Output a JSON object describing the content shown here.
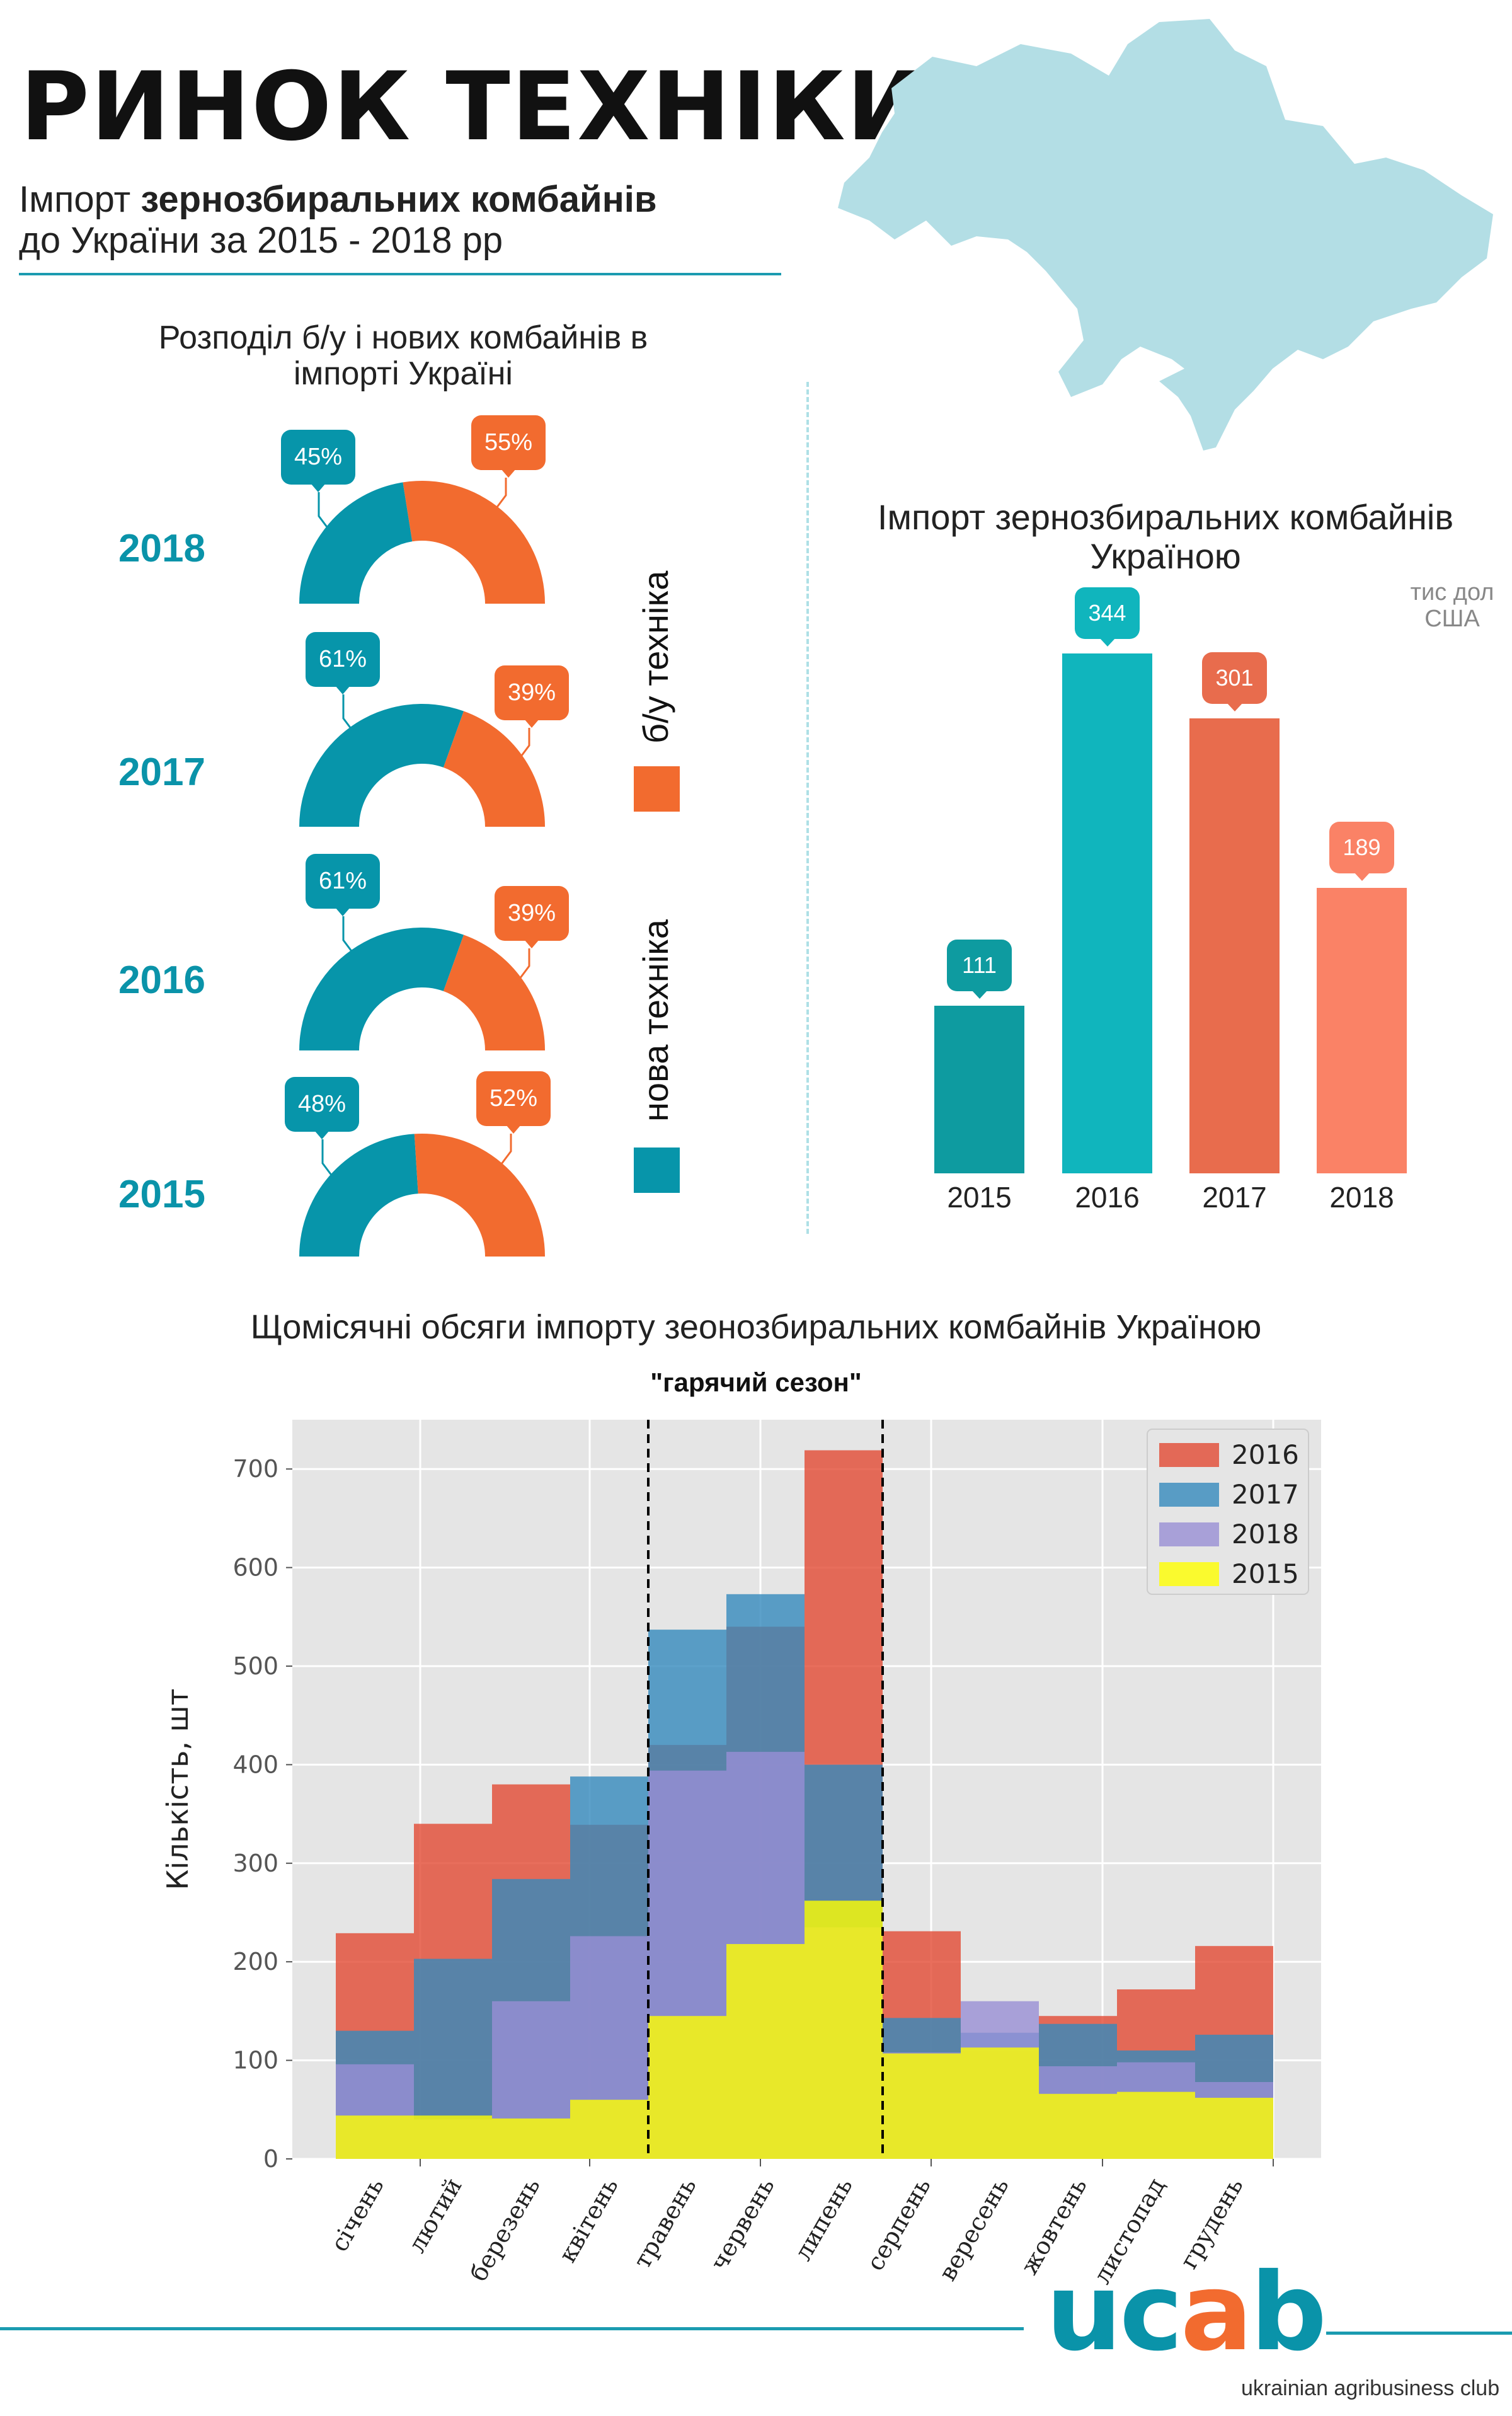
{
  "header": {
    "title": "РИНОК ТЕХНІКИ",
    "subtitle_pre": "Імпорт ",
    "subtitle_bold": "зернозбиральних комбайнів",
    "subtitle_line2": "до України за 2015 - 2018 рр"
  },
  "map": {
    "name": "ukraine-map",
    "color": "#b3dee5"
  },
  "donuts": {
    "title_line1": "Розподіл б/у і нових комбайнів в",
    "title_line2": "імпорті Україні",
    "colors": {
      "new": "#0795aa",
      "used": "#f26b2f"
    },
    "legend": {
      "used": "б/у техніка",
      "new": "нова техніка"
    },
    "rows": [
      {
        "year": "2018",
        "new": "45%",
        "used": "55%",
        "new_value": 45
      },
      {
        "year": "2017",
        "new": "61%",
        "used": "39%",
        "new_value": 61
      },
      {
        "year": "2016",
        "new": "61%",
        "used": "39%",
        "new_value": 61
      },
      {
        "year": "2015",
        "new": "48%",
        "used": "52%",
        "new_value": 48
      }
    ]
  },
  "chart_data": [
    {
      "type": "bar",
      "title": "Імпорт зернозбиральних комбайнів Україною",
      "unit": "тис дол США",
      "categories": [
        "2015",
        "2016",
        "2017",
        "2018"
      ],
      "values": [
        111,
        344,
        301,
        189
      ],
      "value_labels": [
        "111",
        "344",
        "301",
        "189"
      ],
      "colors": [
        "#0e9ba0",
        "#10b5bd",
        "#e86c4d",
        "#fa8266"
      ]
    },
    {
      "type": "bar",
      "title": "Щомісячні обсяги імпорту зеонозбиральних комбайнів Україною",
      "annotation": "\"гарячий сезон\"",
      "annotation_span": [
        "травень",
        "липень"
      ],
      "ylabel": "Кількість,  шт",
      "ylim": [
        0,
        750
      ],
      "yticks": [
        "0",
        "100",
        "200",
        "300",
        "400",
        "500",
        "600",
        "700"
      ],
      "grid": true,
      "legend": "top-right",
      "categories": [
        "січень",
        "лютий",
        "березень",
        "квітень",
        "травень",
        "червень",
        "липень",
        "серпень",
        "вересень",
        "жовтень",
        "листопад",
        "грудень"
      ],
      "series": [
        {
          "name": "2016",
          "color": "#e24a33",
          "values": [
            229,
            340,
            380,
            339,
            420,
            540,
            719,
            231,
            110,
            145,
            172,
            216
          ]
        },
        {
          "name": "2017",
          "color": "#348abd",
          "values": [
            130,
            203,
            284,
            388,
            537,
            573,
            400,
            143,
            128,
            137,
            110,
            126
          ]
        },
        {
          "name": "2018",
          "color": "#988ed5",
          "values": [
            96,
            40,
            160,
            226,
            394,
            413,
            235,
            108,
            160,
            94,
            98,
            78
          ]
        },
        {
          "name": "2015",
          "color": "#ffff00",
          "values": [
            44,
            44,
            41,
            60,
            145,
            218,
            262,
            107,
            113,
            66,
            68,
            62
          ]
        }
      ]
    }
  ],
  "footer": {
    "logo": "ucab",
    "logo_u": "uc",
    "logo_a": "a",
    "logo_b": "b",
    "tagline": "ukrainian agribusiness club"
  }
}
